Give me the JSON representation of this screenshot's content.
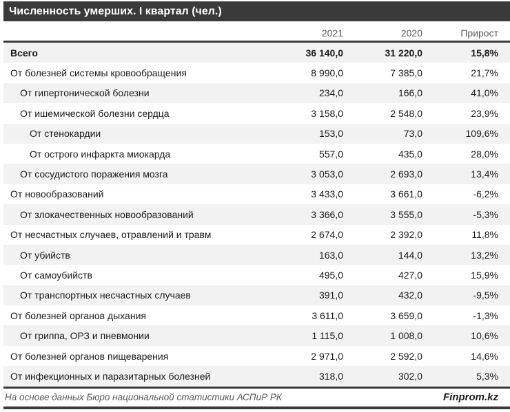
{
  "title": "Численность умерших. I квартал (чел.)",
  "columns": {
    "name": "",
    "y2021": "2021",
    "y2020": "2020",
    "growth": "Прирост"
  },
  "footer": {
    "source": "На основе данных Бюро национальной статистики АСПиР РК",
    "brand": "Finprom.kz"
  },
  "colors": {
    "header_bar": "#3a3a3a",
    "stripe": "#f2f2f2",
    "muted_text": "#595959",
    "rule": "#3a3a3a"
  },
  "chart_data": {
    "type": "table",
    "title": "Численность умерших. I квартал (чел.)",
    "columns": [
      "",
      "2021",
      "2020",
      "Прирост"
    ],
    "legend_position": "none",
    "grid": false,
    "rows": [
      {
        "label": "Всего",
        "y2021": "36 140,0",
        "y2020": "31 220,0",
        "growth": "15,8%",
        "level": 0,
        "bold": true
      },
      {
        "label": "От болезней системы кровообращения",
        "y2021": "8 990,0",
        "y2020": "7 385,0",
        "growth": "21,7%",
        "level": 1,
        "bold": false
      },
      {
        "label": "От гипертонической болезни",
        "y2021": "234,0",
        "y2020": "166,0",
        "growth": "41,0%",
        "level": 2,
        "bold": false
      },
      {
        "label": "От ишемической болезни сердца",
        "y2021": "3 158,0",
        "y2020": "2 548,0",
        "growth": "23,9%",
        "level": 2,
        "bold": false
      },
      {
        "label": "От стенокардии",
        "y2021": "153,0",
        "y2020": "73,0",
        "growth": "109,6%",
        "level": 3,
        "bold": false
      },
      {
        "label": "От острого инфаркта миокарда",
        "y2021": "557,0",
        "y2020": "435,0",
        "growth": "28,0%",
        "level": 3,
        "bold": false
      },
      {
        "label": "От сосудистого поражения мозга",
        "y2021": "3 053,0",
        "y2020": "2 693,0",
        "growth": "13,4%",
        "level": 2,
        "bold": false
      },
      {
        "label": "От новообразований",
        "y2021": "3 433,0",
        "y2020": "3 661,0",
        "growth": "-6,2%",
        "level": 1,
        "bold": false
      },
      {
        "label": "От злокачественных новообразований",
        "y2021": "3 366,0",
        "y2020": "3 555,0",
        "growth": "-5,3%",
        "level": 2,
        "bold": false
      },
      {
        "label": "От несчастных случаев, отравлений и травм",
        "y2021": "2 674,0",
        "y2020": "2 392,0",
        "growth": "11,8%",
        "level": 1,
        "bold": false
      },
      {
        "label": "От убийств",
        "y2021": "163,0",
        "y2020": "144,0",
        "growth": "13,2%",
        "level": 2,
        "bold": false
      },
      {
        "label": "От самоубийств",
        "y2021": "495,0",
        "y2020": "427,0",
        "growth": "15,9%",
        "level": 2,
        "bold": false
      },
      {
        "label": "От транспортных несчастных случаев",
        "y2021": "391,0",
        "y2020": "432,0",
        "growth": "-9,5%",
        "level": 2,
        "bold": false
      },
      {
        "label": "От болезней органов дыхания",
        "y2021": "3 611,0",
        "y2020": "3 659,0",
        "growth": "-1,3%",
        "level": 1,
        "bold": false
      },
      {
        "label": "От гриппа, ОРЗ и пневмонии",
        "y2021": "1 115,0",
        "y2020": "1 008,0",
        "growth": "10,6%",
        "level": 2,
        "bold": false
      },
      {
        "label": "От болезней органов пищеварения",
        "y2021": "2 971,0",
        "y2020": "2 592,0",
        "growth": "14,6%",
        "level": 1,
        "bold": false
      },
      {
        "label": "От инфекционных и паразитарных болезней",
        "y2021": "318,0",
        "y2020": "302,0",
        "growth": "5,3%",
        "level": 1,
        "bold": false
      }
    ]
  }
}
